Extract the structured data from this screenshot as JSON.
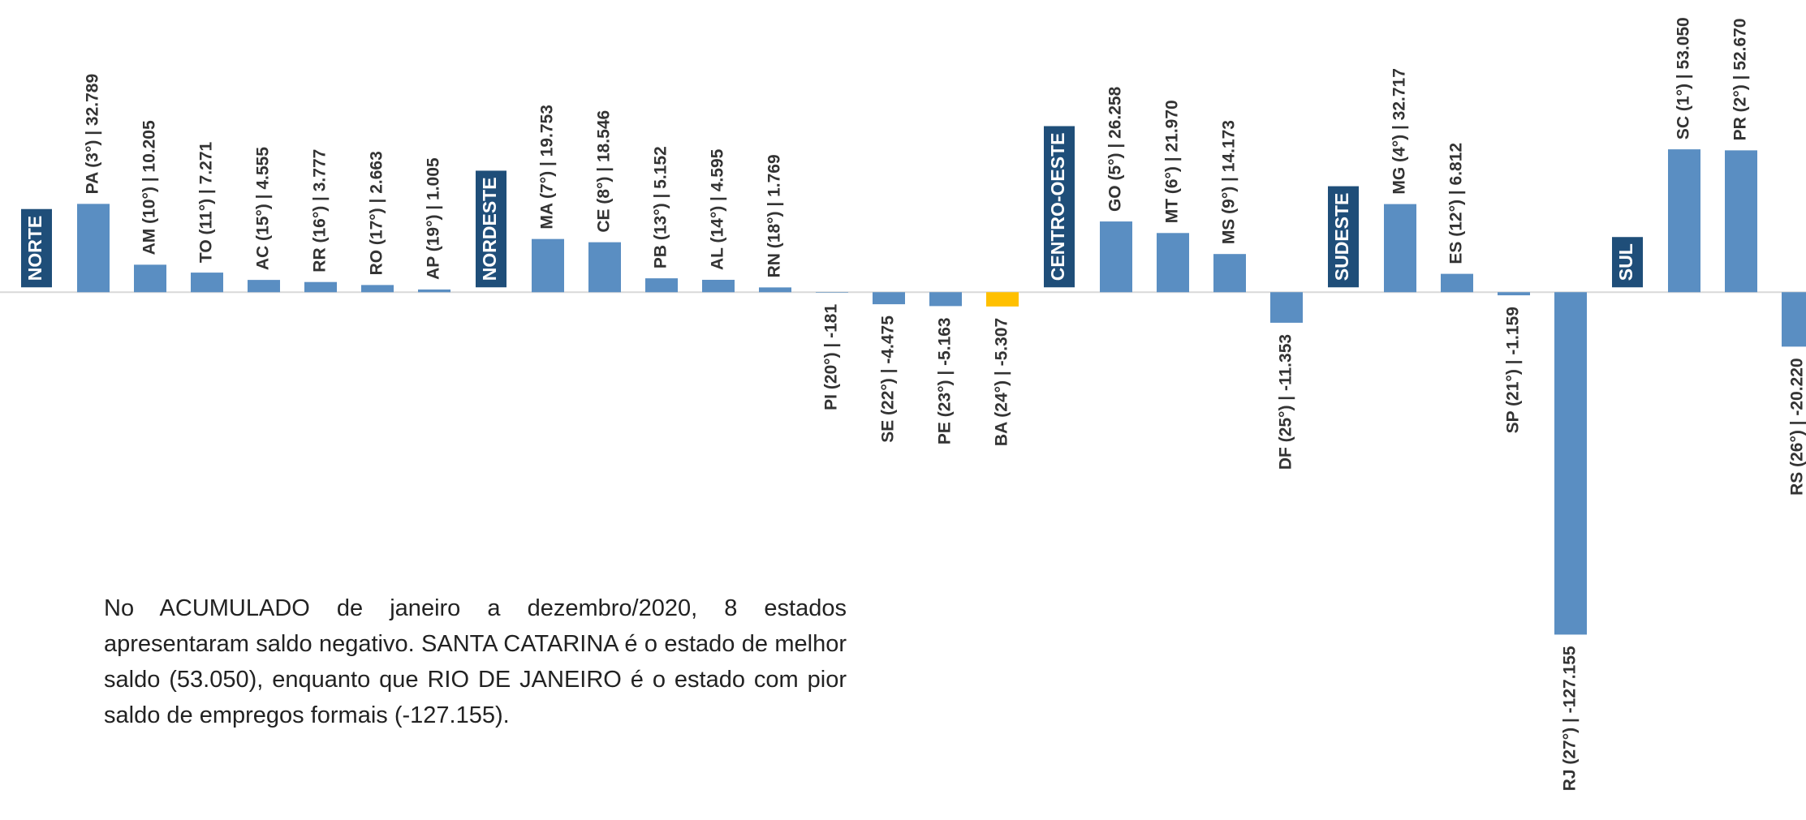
{
  "chart_data": {
    "type": "bar",
    "color": "#5a8ec2",
    "region_color": "#1f4e79",
    "ylim": [
      -196000,
      108500
    ],
    "groups": [
      {
        "name": "NORTE",
        "categories": [
          "PA (3°) | 32.789",
          "AM (10°) | 10.205",
          "TO (11°) | 7.271",
          "AC (15°) | 4.555",
          "RR (16°) | 3.777",
          "RO (17°) | 2.663",
          "AP (19°) | 1.005"
        ],
        "values": [
          32789,
          10205,
          7271,
          4555,
          3777,
          2663,
          1005
        ],
        "colors": [
          "#5a8ec2",
          "#5a8ec2",
          "#5a8ec2",
          "#5a8ec2",
          "#5a8ec2",
          "#5a8ec2",
          "#5a8ec2"
        ]
      },
      {
        "name": "NORDESTE",
        "categories": [
          "MA (7°) | 19.753",
          "CE (8°) | 18.546",
          "PB (13°) | 5.152",
          "AL (14°) | 4.595",
          "RN (18°) | 1.769",
          "PI (20°) | -181",
          "SE (22°) | -4.475",
          "PE (23°) | -5.163",
          "BA (24°) | -5.307"
        ],
        "values": [
          19753,
          18546,
          5152,
          4595,
          1769,
          -181,
          -4475,
          -5163,
          -5307
        ],
        "colors": [
          "#5a8ec2",
          "#5a8ec2",
          "#5a8ec2",
          "#5a8ec2",
          "#5a8ec2",
          "#5a8ec2",
          "#5a8ec2",
          "#5a8ec2",
          "#ffc000"
        ]
      },
      {
        "name": "CENTRO-OESTE",
        "categories": [
          "GO (5°) | 26.258",
          "MT (6°) | 21.970",
          "MS (9°) | 14.173",
          "DF (25°) | -11.353"
        ],
        "values": [
          26258,
          21970,
          14173,
          -11353
        ],
        "colors": [
          "#5a8ec2",
          "#5a8ec2",
          "#5a8ec2",
          "#5a8ec2"
        ]
      },
      {
        "name": "SUDESTE",
        "categories": [
          "MG (4°) | 32.717",
          "ES (12°) | 6.812",
          "SP (21°) | -1.159",
          "RJ (27°) | -127.155"
        ],
        "values": [
          32717,
          6812,
          -1159,
          -127155
        ],
        "colors": [
          "#5a8ec2",
          "#5a8ec2",
          "#5a8ec2",
          "#5a8ec2"
        ]
      },
      {
        "name": "SUL",
        "categories": [
          "SC (1°) | 53.050",
          "PR (2°) | 52.670",
          "RS (26°) | -20.220"
        ],
        "values": [
          53050,
          52670,
          -20220
        ],
        "colors": [
          "#5a8ec2",
          "#5a8ec2",
          "#5a8ec2"
        ]
      }
    ],
    "note": "No ACUMULADO de janeiro a dezembro/2020, 8 estados apresentaram saldo negativo. SANTA CATARINA é o estado de melhor saldo (53.050), enquanto que RIO DE JANEIRO é o estado com pior saldo de empregos formais (-127.155)."
  }
}
